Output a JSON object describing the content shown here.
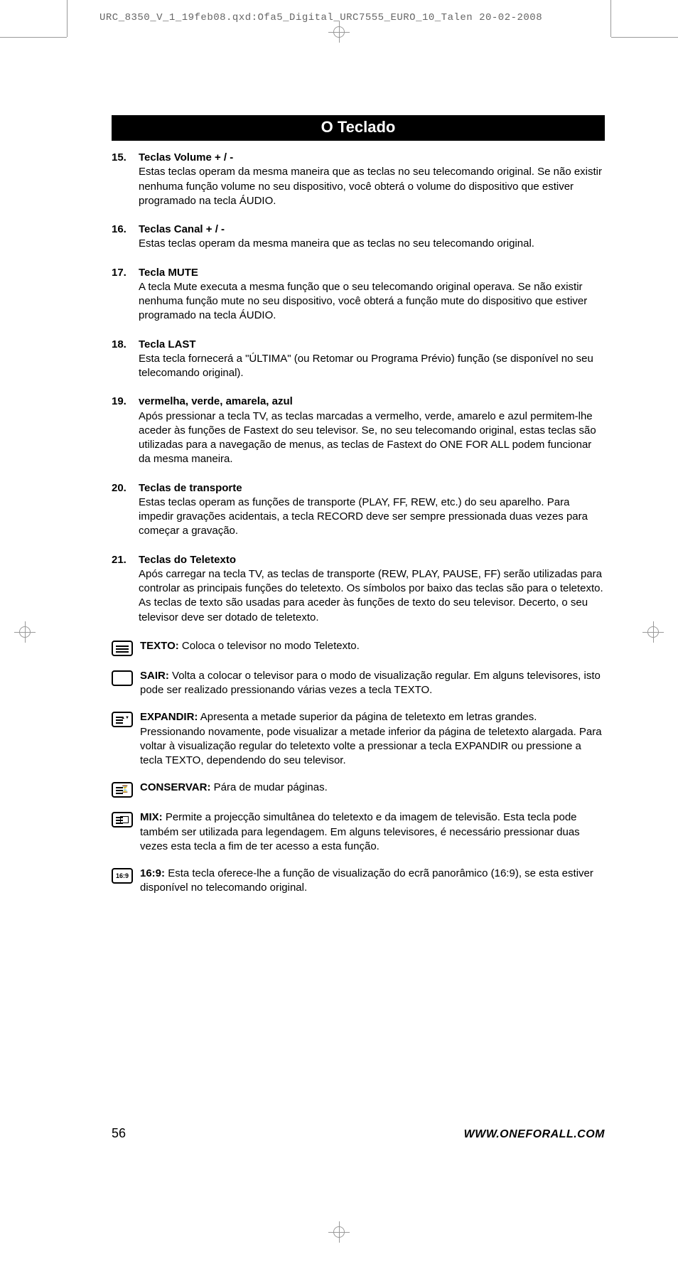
{
  "header_line": "URC_8350_V_1_19feb08.qxd:Ofa5_Digital_URC7555_EURO_10_Talen  20-02-2008",
  "section_title": "O Teclado",
  "items": [
    {
      "num": "15.",
      "title": "Teclas Volume + / -",
      "body": "Estas teclas operam da mesma maneira que as teclas no seu telecomando original. Se não existir nenhuma função volume no seu dispositivo, você obterá o volume do dispositivo que estiver programado na tecla ÁUDIO."
    },
    {
      "num": "16.",
      "title": "Teclas Canal + / -",
      "body": "Estas teclas operam da mesma maneira que as teclas no seu telecomando original."
    },
    {
      "num": "17.",
      "title": "Tecla MUTE",
      "body": "A tecla Mute executa a mesma função que o seu telecomando original operava. Se não existir nenhuma função mute no seu dispositivo, você obterá a função mute do dispositivo que estiver programado na tecla ÁUDIO."
    },
    {
      "num": "18.",
      "title": "Tecla LAST",
      "body": "Esta tecla fornecerá a \"ÚLTIMA\" (ou Retomar ou Programa Prévio) função (se disponível no seu telecomando original)."
    },
    {
      "num": "19.",
      "title": "vermelha, verde, amarela, azul",
      "body": "Após pressionar a tecla TV, as teclas marcadas a vermelho, verde, amarelo e azul permitem-lhe aceder às funções de Fastext do seu televisor. Se, no seu telecomando original, estas teclas são utilizadas para a navegação de menus, as teclas de Fastext do ONE FOR ALL podem funcionar da mesma maneira."
    },
    {
      "num": "20.",
      "title": "Teclas de transporte",
      "body": "Estas teclas operam as funções de transporte (PLAY, FF, REW, etc.) do seu aparelho. Para impedir gravações acidentais, a tecla RECORD deve ser sempre pressionada duas vezes para começar a gravação."
    },
    {
      "num": "21.",
      "title": "Teclas do Teletexto",
      "body": "Após carregar na tecla TV, as teclas de transporte (REW, PLAY, PAUSE, FF) serão utilizadas para controlar as principais funções do teletexto. Os símbolos por baixo das teclas são para o teletexto. As teclas de texto são usadas para aceder às funções de texto do seu televisor. Decerto, o seu televisor deve ser dotado de teletexto."
    }
  ],
  "subs": [
    {
      "icon": "texto",
      "label": "TEXTO:",
      "text": " Coloca o televisor no modo Teletexto."
    },
    {
      "icon": "sair",
      "label": "SAIR:",
      "text": " Volta a colocar o televisor para o modo de visualização regular. Em alguns televisores, isto pode ser realizado pressionando várias vezes a tecla TEXTO."
    },
    {
      "icon": "expandir",
      "label": "EXPANDIR:",
      "text": " Apresenta a metade superior da página de teletexto em letras grandes. Pressionando novamente, pode visualizar a metade inferior da página de teletexto alargada. Para voltar à visualização regular do teletexto volte a pressionar a tecla EXPANDIR ou pressione a tecla TEXTO, dependendo do seu televisor."
    },
    {
      "icon": "conservar",
      "label": "CONSERVAR:",
      "text": " Pára de mudar páginas."
    },
    {
      "icon": "mix",
      "label": "MIX:",
      "text": " Permite a projecção simultânea do teletexto e da imagem de televisão. Esta tecla pode também ser utilizada para legendagem. Em alguns televisores, é necessário pressionar duas vezes esta tecla a fim de ter acesso a esta função."
    },
    {
      "icon": "169",
      "label": "16:9:",
      "text": " Esta tecla oferece-lhe a função de visualização do ecrã panorâmico (16:9), se esta estiver disponível no telecomando original."
    }
  ],
  "page_number": "56",
  "url": "WWW.ONEFORALL.COM"
}
